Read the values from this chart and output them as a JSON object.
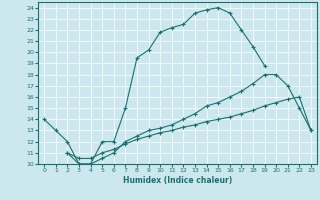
{
  "xlabel": "Humidex (Indice chaleur)",
  "bg_color": "#cce8ee",
  "line_color": "#1a7070",
  "xlim": [
    -0.5,
    23.5
  ],
  "ylim": [
    10,
    24.5
  ],
  "xticks": [
    0,
    1,
    2,
    3,
    4,
    5,
    6,
    7,
    8,
    9,
    10,
    11,
    12,
    13,
    14,
    15,
    16,
    17,
    18,
    19,
    20,
    21,
    22,
    23
  ],
  "yticks": [
    10,
    11,
    12,
    13,
    14,
    15,
    16,
    17,
    18,
    19,
    20,
    21,
    22,
    23,
    24
  ],
  "line1_x": [
    0,
    1,
    2,
    3,
    4,
    5,
    6,
    7,
    8,
    9,
    10,
    11,
    12,
    13,
    14,
    15,
    16,
    17,
    18,
    19
  ],
  "line1_y": [
    14,
    13,
    12,
    10,
    10,
    12,
    12,
    15,
    19.5,
    20.2,
    21.8,
    22.2,
    22.5,
    23.5,
    23.8,
    24,
    23.5,
    22,
    20.5,
    18.8
  ],
  "line2_x": [
    2,
    3,
    4,
    5,
    6,
    7,
    8,
    9,
    10,
    11,
    12,
    13,
    14,
    15,
    16,
    17,
    18,
    19,
    20,
    21,
    22,
    23
  ],
  "line2_y": [
    11,
    10,
    10,
    10.5,
    11,
    12,
    12.5,
    13,
    13.2,
    13.5,
    14,
    14.5,
    15.2,
    15.5,
    16.0,
    16.5,
    17.2,
    18,
    18,
    17,
    15,
    13
  ],
  "line3_x": [
    2,
    3,
    4,
    5,
    6,
    7,
    8,
    9,
    10,
    11,
    12,
    13,
    14,
    15,
    16,
    17,
    18,
    19,
    20,
    21,
    22,
    23
  ],
  "line3_y": [
    11,
    10.5,
    10.5,
    11,
    11.3,
    11.8,
    12.2,
    12.5,
    12.8,
    13.0,
    13.3,
    13.5,
    13.8,
    14.0,
    14.2,
    14.5,
    14.8,
    15.2,
    15.5,
    15.8,
    16.0,
    13
  ]
}
